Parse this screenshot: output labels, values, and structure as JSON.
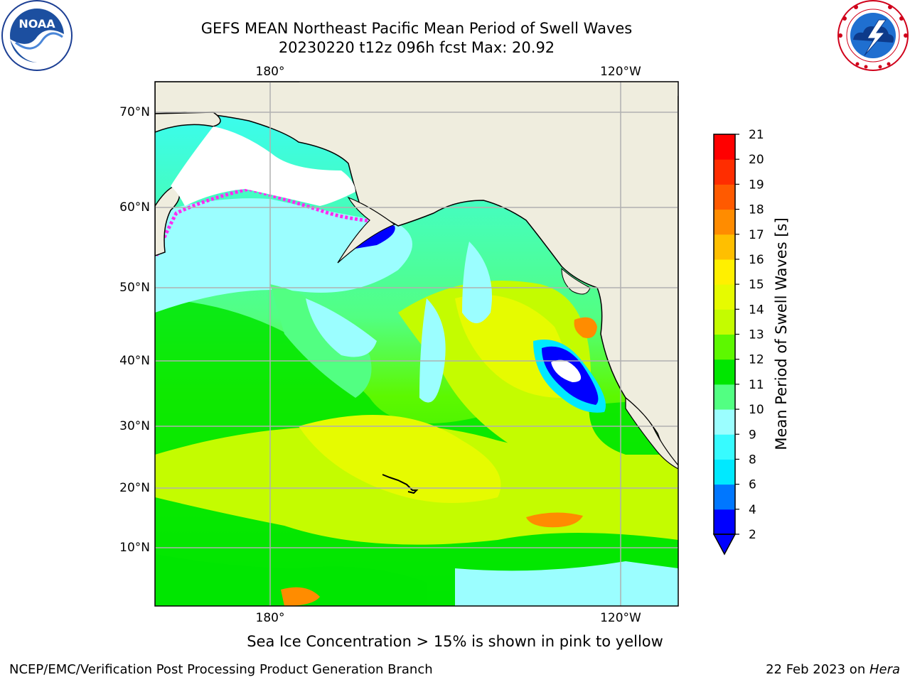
{
  "header": {
    "title_line1": "GEFS MEAN Northeast Pacific Mean Period of Swell Waves",
    "title_line2": "20230220 t12z 096h fcst   Max: 20.92"
  },
  "logos": {
    "left": {
      "icon": "noaa-logo",
      "text": "NOAA",
      "ring_text": "NATIONAL OCEANIC AND ATMOSPHERIC ADMINISTRATION · U.S. DEPARTMENT OF COMMERCE"
    },
    "right": {
      "icon": "nws-logo",
      "ring_text": "NATIONAL WEATHER SERVICE"
    }
  },
  "map": {
    "lon_labels_top": [
      "180°",
      "120°W"
    ],
    "lon_labels_bottom": [
      "180°",
      "120°W"
    ],
    "lat_labels": [
      "70°N",
      "60°N",
      "50°N",
      "40°N",
      "30°N",
      "20°N",
      "10°N"
    ],
    "land_color": "#efedde",
    "gridline_color": "#b0b0b0"
  },
  "colorbar": {
    "label": "Mean Period of Swell Waves [s]",
    "ticks": [
      "2",
      "4",
      "6",
      "8",
      "9",
      "10",
      "11",
      "12",
      "13",
      "14",
      "15",
      "16",
      "17",
      "18",
      "19",
      "20",
      "21"
    ],
    "colors": [
      "#0000ff",
      "#0077ff",
      "#00e9ff",
      "#37fbff",
      "#9bfeff",
      "#52ff82",
      "#00e600",
      "#5df800",
      "#c4fc00",
      "#e6fb00",
      "#fff000",
      "#ffbf00",
      "#ff8c00",
      "#ff5a00",
      "#ff2d00",
      "#ff0000"
    ],
    "under_color": "#0000ff"
  },
  "footer": {
    "note": "Sea Ice Concentration > 15% is shown in pink to yellow",
    "credit_left": "NCEP/EMC/Verification Post Processing Product Generation Branch",
    "credit_date": "22 Feb 2023 on ",
    "credit_host": "Hera"
  }
}
